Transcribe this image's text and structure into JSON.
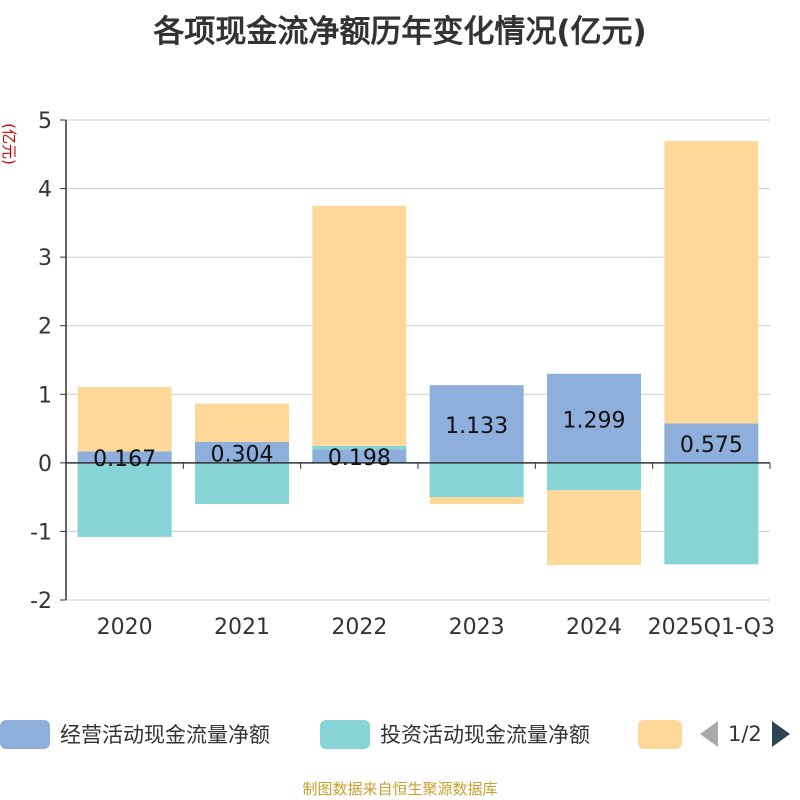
{
  "title": "各项现金流净额历年变化情况(亿元)",
  "source_note": "制图数据来自恒生聚源数据库",
  "legend": {
    "items": [
      {
        "label": "经营活动现金流量净额",
        "color": "#8eaedc"
      },
      {
        "label": "投资活动现金流量净额",
        "color": "#86d4d6"
      },
      {
        "label": "",
        "color": "#fed898"
      }
    ],
    "page_text": "1/2"
  },
  "chart_data": {
    "type": "bar",
    "stacked": true,
    "categories": [
      "2020",
      "2021",
      "2022",
      "2023",
      "2024",
      "2025Q1-Q3"
    ],
    "ylabel": "(亿元)",
    "ylim": [
      -2,
      5
    ],
    "yticks": [
      -2,
      -1,
      0,
      1,
      2,
      3,
      4,
      5
    ],
    "grid": true,
    "legend_position": "bottom",
    "series": [
      {
        "name": "经营活动现金流量净额",
        "color": "#8eaedc",
        "values": [
          0.167,
          0.304,
          0.198,
          1.133,
          1.299,
          0.575
        ],
        "labels": [
          "0.167",
          "0.304",
          "0.198",
          "1.133",
          "1.299",
          "0.575"
        ]
      },
      {
        "name": "投资活动现金流量净额",
        "color": "#86d4d6",
        "values": [
          -1.08,
          -0.6,
          0.05,
          -0.5,
          -0.4,
          -1.48
        ]
      },
      {
        "color": "#fed898",
        "values": [
          0.94,
          0.56,
          3.5,
          -0.1,
          -1.09,
          4.12
        ]
      }
    ]
  }
}
